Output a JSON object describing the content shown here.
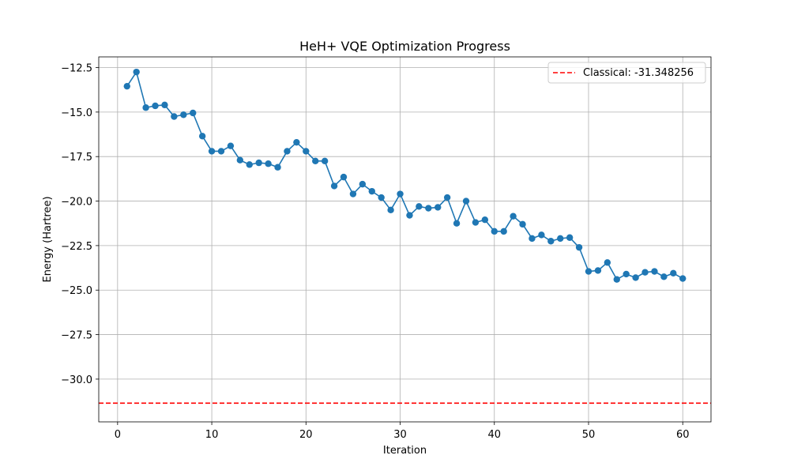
{
  "chart_data": {
    "type": "line",
    "title": "HeH+ VQE Optimization Progress",
    "xlabel": "Iteration",
    "ylabel": "Energy (Hartree)",
    "xlim": [
      -2,
      63
    ],
    "ylim": [
      -32.4,
      -11.9
    ],
    "xticks": [
      0,
      10,
      20,
      30,
      40,
      50,
      60
    ],
    "xtick_labels": [
      "0",
      "10",
      "20",
      "30",
      "40",
      "50",
      "60"
    ],
    "yticks": [
      -12.5,
      -15.0,
      -17.5,
      -20.0,
      -22.5,
      -25.0,
      -27.5,
      -30.0
    ],
    "ytick_labels": [
      "−12.5",
      "−15.0",
      "−17.5",
      "−20.0",
      "−22.5",
      "−25.0",
      "−27.5",
      "−30.0"
    ],
    "grid": true,
    "legend_position": "top-right",
    "series": [
      {
        "color": "#1f77b4",
        "marker": "circle",
        "x": [
          1,
          2,
          3,
          4,
          5,
          6,
          7,
          8,
          9,
          10,
          11,
          12,
          13,
          14,
          15,
          16,
          17,
          18,
          19,
          20,
          21,
          22,
          23,
          24,
          25,
          26,
          27,
          28,
          29,
          30,
          31,
          32,
          33,
          34,
          35,
          36,
          37,
          38,
          39,
          40,
          41,
          42,
          43,
          44,
          45,
          46,
          47,
          48,
          49,
          50,
          51,
          52,
          53,
          54,
          55,
          56,
          57,
          58,
          59,
          60
        ],
        "values": [
          -13.55,
          -12.75,
          -14.75,
          -14.65,
          -14.6,
          -15.25,
          -15.15,
          -15.05,
          -16.35,
          -17.2,
          -17.2,
          -16.9,
          -17.7,
          -17.95,
          -17.85,
          -17.9,
          -18.1,
          -17.2,
          -16.7,
          -17.2,
          -17.75,
          -17.75,
          -19.15,
          -18.65,
          -19.6,
          -19.05,
          -19.45,
          -19.8,
          -20.5,
          -19.6,
          -20.8,
          -20.3,
          -20.4,
          -20.35,
          -19.8,
          -21.25,
          -20.0,
          -21.2,
          -21.05,
          -21.7,
          -21.7,
          -20.85,
          -21.3,
          -22.1,
          -21.9,
          -22.25,
          -22.1,
          -22.05,
          -22.6,
          -23.95,
          -23.9,
          -23.45,
          -24.4,
          -24.1,
          -24.3,
          -24.0,
          -23.95,
          -24.25,
          -24.05,
          -24.35
        ]
      }
    ],
    "reference_line": {
      "name": "Classical: -31.348256",
      "value": -31.348256,
      "color": "#ff0000",
      "style": "dashed"
    }
  }
}
